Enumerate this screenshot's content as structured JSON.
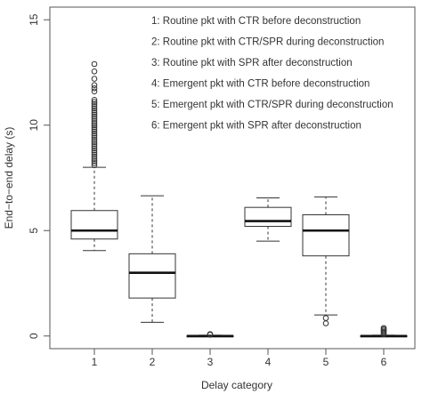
{
  "chart_data": {
    "type": "boxplot",
    "xlabel": "Delay category",
    "ylabel": "End−to−end delay (s)",
    "ylim": [
      -0.6,
      15.6
    ],
    "yticks": [
      0,
      5,
      10,
      15
    ],
    "categories": [
      "1",
      "2",
      "3",
      "4",
      "5",
      "6"
    ],
    "legend": [
      "1: Routine pkt with CTR before deconstruction",
      "2: Routine pkt with CTR/SPR during deconstruction",
      "3: Routine pkt with SPR after deconstruction",
      "4: Emergent pkt with CTR before deconstruction",
      "5: Emergent pkt with CTR/SPR during deconstruction",
      "6: Emergent pkt with SPR after deconstruction"
    ],
    "legend_position": "top-right",
    "grid": false,
    "boxes": [
      {
        "category": "1",
        "whisker_low": 4.05,
        "q1": 4.6,
        "median": 5.0,
        "q3": 5.95,
        "whisker_high": 8.0,
        "outliers": [
          8.1,
          8.2,
          8.3,
          8.4,
          8.5,
          8.6,
          8.7,
          8.8,
          8.9,
          9.0,
          9.1,
          9.2,
          9.3,
          9.4,
          9.5,
          9.6,
          9.7,
          9.8,
          9.9,
          10.0,
          10.1,
          10.2,
          10.3,
          10.4,
          10.5,
          10.6,
          10.7,
          10.8,
          10.9,
          11.0,
          11.1,
          11.2,
          11.6,
          11.75,
          11.9,
          12.2,
          12.55,
          12.9
        ]
      },
      {
        "category": "2",
        "whisker_low": 0.65,
        "q1": 1.8,
        "median": 3.0,
        "q3": 3.9,
        "whisker_high": 6.65,
        "outliers": []
      },
      {
        "category": "3",
        "whisker_low": 0.0,
        "q1": 0.0,
        "median": 0.0,
        "q3": 0.02,
        "whisker_high": 0.04,
        "outliers": [
          0.06,
          0.09
        ]
      },
      {
        "category": "4",
        "whisker_low": 4.5,
        "q1": 5.2,
        "median": 5.45,
        "q3": 6.1,
        "whisker_high": 6.55,
        "outliers": []
      },
      {
        "category": "5",
        "whisker_low": 1.0,
        "q1": 3.8,
        "median": 5.0,
        "q3": 5.75,
        "whisker_high": 6.6,
        "outliers": [
          0.85,
          0.6
        ]
      },
      {
        "category": "6",
        "whisker_low": 0.0,
        "q1": 0.0,
        "median": 0.0,
        "q3": 0.02,
        "whisker_high": 0.04,
        "outliers": [
          0.08,
          0.14,
          0.2,
          0.26,
          0.32,
          0.38
        ]
      }
    ]
  }
}
